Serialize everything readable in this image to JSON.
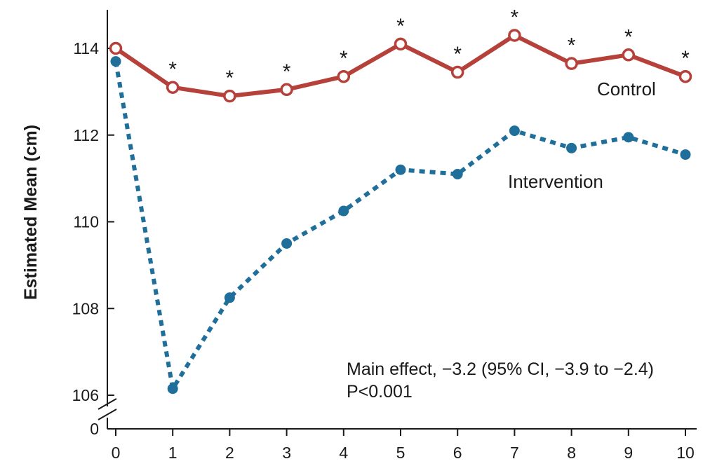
{
  "chart_data": {
    "type": "line",
    "title": "",
    "xlabel": "",
    "ylabel": "Estimated Mean (cm)",
    "x": [
      0,
      1,
      2,
      3,
      4,
      5,
      6,
      7,
      8,
      9,
      10
    ],
    "x_ticks": [
      "0",
      "1",
      "2",
      "3",
      "4",
      "5",
      "6",
      "7",
      "8",
      "9",
      "10"
    ],
    "y_ticks": [
      "106",
      "108",
      "110",
      "112",
      "114"
    ],
    "y_break_tick": "0",
    "ylim": [
      106,
      114.9
    ],
    "grid": false,
    "legend": "inline labels",
    "series": [
      {
        "name": "Control",
        "color": "#b5413a",
        "style": "solid",
        "marker": "open-circle",
        "values": [
          114.0,
          113.1,
          112.9,
          113.05,
          113.35,
          114.1,
          113.45,
          114.3,
          113.65,
          113.85,
          113.35
        ]
      },
      {
        "name": "Intervention",
        "color": "#1f6f9a",
        "style": "dotted",
        "marker": "filled-circle",
        "values": [
          113.7,
          106.15,
          108.25,
          109.5,
          110.25,
          111.2,
          111.1,
          112.1,
          111.7,
          111.95,
          111.55
        ]
      }
    ],
    "significance_marker": "*",
    "significance_at_x": [
      1,
      2,
      3,
      4,
      5,
      6,
      7,
      8,
      9,
      10
    ],
    "annotation_lines": [
      "Main effect, −3.2 (95% CI, −3.9 to −2.4)",
      "P<0.001"
    ]
  }
}
